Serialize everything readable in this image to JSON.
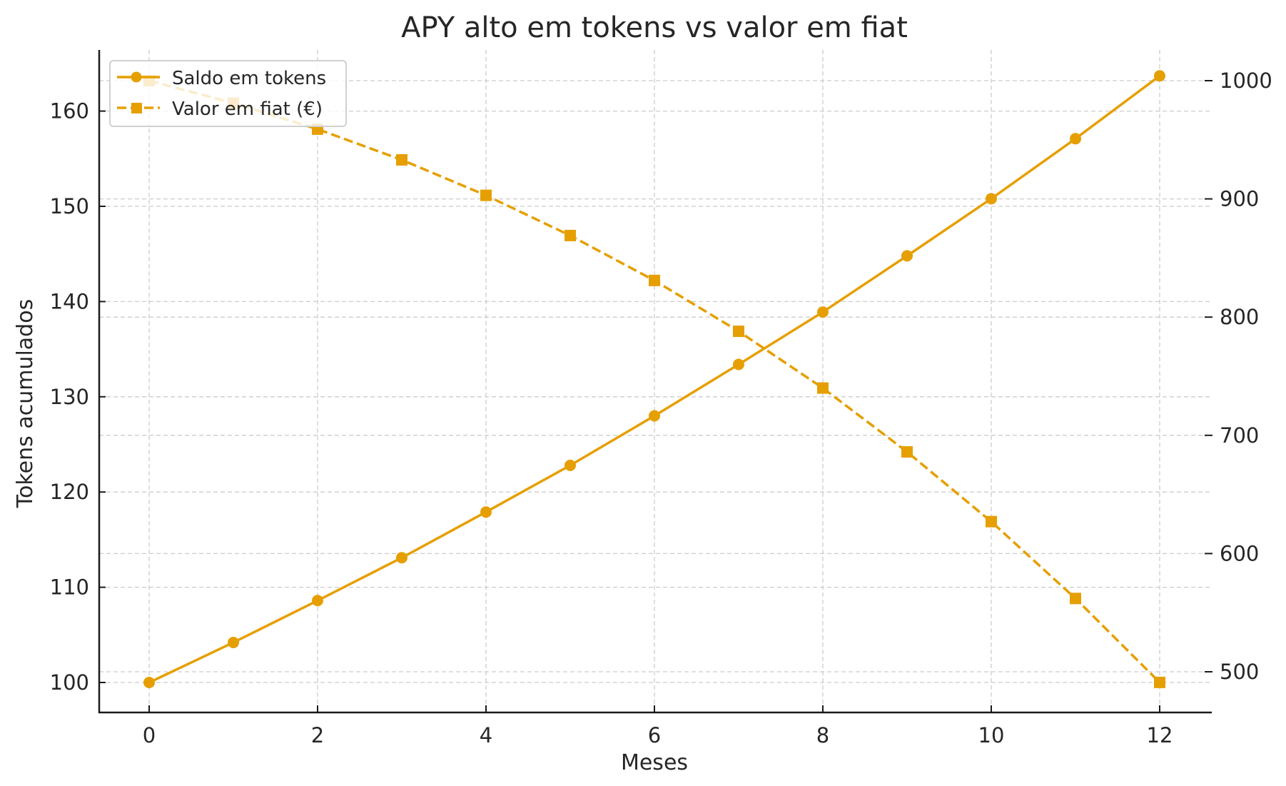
{
  "chart_data": {
    "type": "line",
    "title": "APY alto em tokens vs valor em fiat",
    "xlabel": "Meses",
    "ylabel": "Tokens acumulados",
    "y2label": "",
    "x": [
      0,
      1,
      2,
      3,
      4,
      5,
      6,
      7,
      8,
      9,
      10,
      11,
      12
    ],
    "xticks": [
      0,
      2,
      4,
      6,
      8,
      10,
      12
    ],
    "xlim": [
      -0.6,
      12.6
    ],
    "ylim": [
      95.0,
      166.4
    ],
    "y2lim": [
      465.5,
      1022.5
    ],
    "yticks": [
      100,
      110,
      120,
      130,
      140,
      150,
      160
    ],
    "y2ticks": [
      500,
      600,
      700,
      800,
      900,
      1000
    ],
    "grid": true,
    "legend_position": "upper left",
    "series": [
      {
        "name": "Saldo em tokens",
        "axis": "left",
        "style": "solid",
        "marker": "circle",
        "color": "#E69F00",
        "values": [
          100.0,
          104.2,
          108.6,
          113.1,
          117.9,
          122.8,
          128.0,
          133.4,
          138.9,
          144.8,
          150.8,
          157.1,
          163.7
        ]
      },
      {
        "name": "Valor em fiat (€)",
        "axis": "right",
        "style": "dashed",
        "marker": "square",
        "color": "#E69F00",
        "values": [
          1000,
          981,
          959,
          933,
          903,
          869,
          831,
          788,
          740,
          686,
          627,
          562,
          491
        ]
      }
    ]
  },
  "colors": {
    "series": "#E69F00",
    "grid": "#cccccc",
    "axis": "#1a1a1a",
    "text": "#262626"
  }
}
